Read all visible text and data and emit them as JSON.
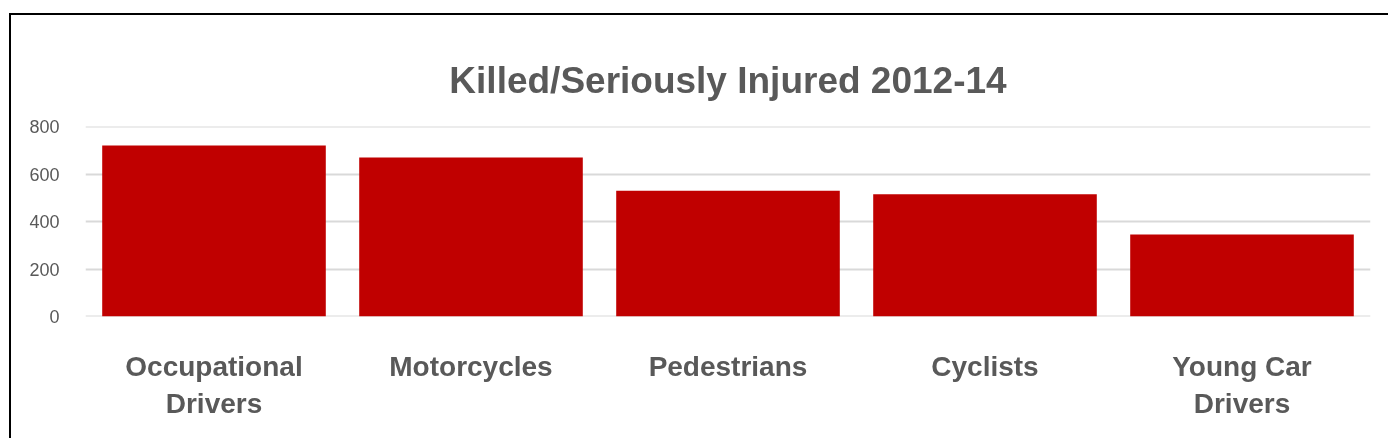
{
  "chart_data": {
    "type": "bar",
    "title": "Killed/Seriously Injured 2012-14",
    "categories": [
      "Occupational Drivers",
      "Motorcycles",
      "Pedestrians",
      "Cyclists",
      "Young Car Drivers"
    ],
    "values": [
      720,
      670,
      530,
      515,
      345
    ],
    "color": "#c00000",
    "ylim": [
      0,
      800
    ],
    "yticks": [
      0,
      200,
      400,
      600,
      800
    ],
    "grid": "y"
  }
}
